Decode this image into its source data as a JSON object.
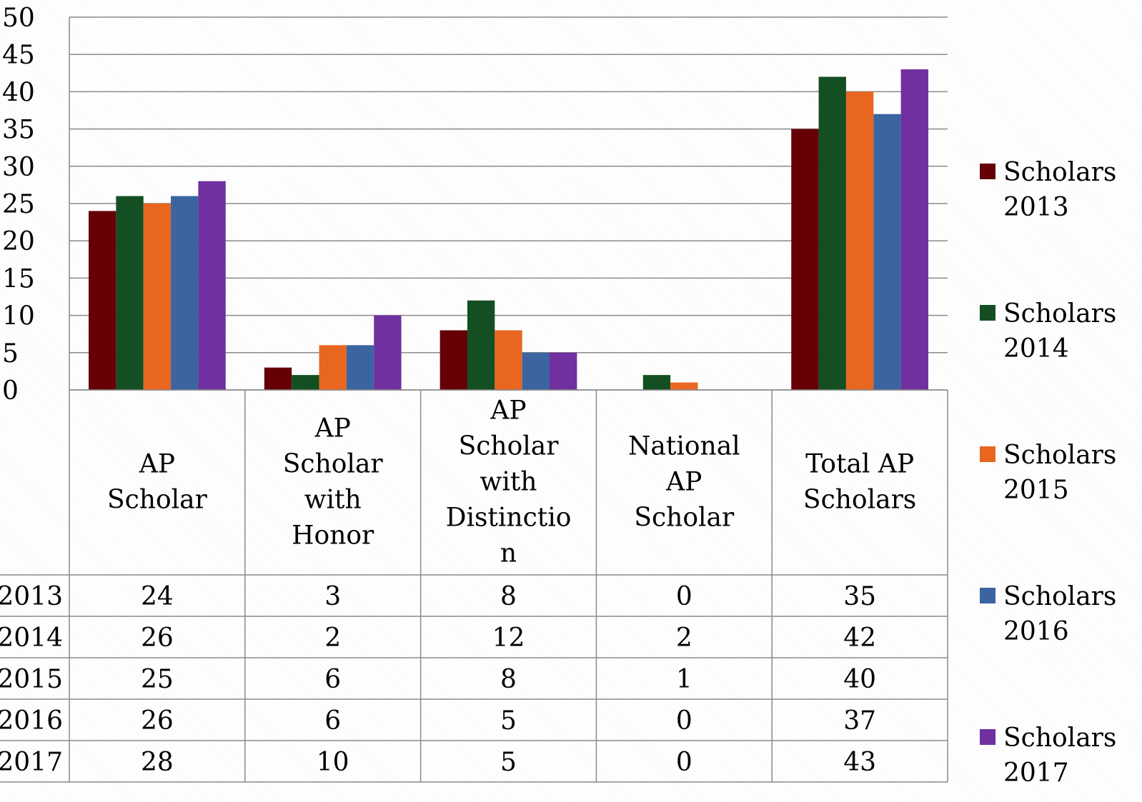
{
  "chart_data": {
    "type": "bar",
    "categories": [
      "AP Scholar",
      "AP Scholar with Honor",
      "AP Scholar with Distinction",
      "National AP Scholar",
      "Total AP Scholars"
    ],
    "category_label_lines": [
      [
        "AP",
        "Scholar"
      ],
      [
        "AP",
        "Scholar",
        "with",
        "Honor"
      ],
      [
        "AP",
        "Scholar",
        "with",
        "Distinctio",
        "n"
      ],
      [
        "National",
        "AP",
        "Scholar"
      ],
      [
        "Total AP",
        "Scholars"
      ]
    ],
    "series": [
      {
        "name": "Scholars 2013",
        "row_label": "2013",
        "color": "#640006",
        "values": [
          24,
          3,
          8,
          0,
          35
        ]
      },
      {
        "name": "Scholars 2014",
        "row_label": "2014",
        "color": "#134f22",
        "values": [
          26,
          2,
          12,
          2,
          42
        ]
      },
      {
        "name": "Scholars 2015",
        "row_label": "2015",
        "color": "#e8661f",
        "values": [
          25,
          6,
          8,
          1,
          40
        ]
      },
      {
        "name": "Scholars 2016",
        "row_label": "2016",
        "color": "#3a65a0",
        "values": [
          26,
          6,
          5,
          0,
          37
        ]
      },
      {
        "name": "Scholars 2017",
        "row_label": "2017",
        "color": "#7030a0",
        "values": [
          28,
          10,
          5,
          0,
          43
        ]
      }
    ],
    "legend_lines": [
      [
        "Scholars",
        "2013"
      ],
      [
        "Scholars",
        "2014"
      ],
      [
        "Scholars",
        "2015"
      ],
      [
        "Scholars",
        "2016"
      ],
      [
        "Scholars",
        "2017"
      ]
    ],
    "yticks": [
      "0",
      "5",
      "10",
      "15",
      "20",
      "25",
      "30",
      "35",
      "40",
      "45",
      "50"
    ],
    "ylim": [
      0,
      50
    ],
    "grid": true,
    "legend_position": "right",
    "data_table": true
  }
}
